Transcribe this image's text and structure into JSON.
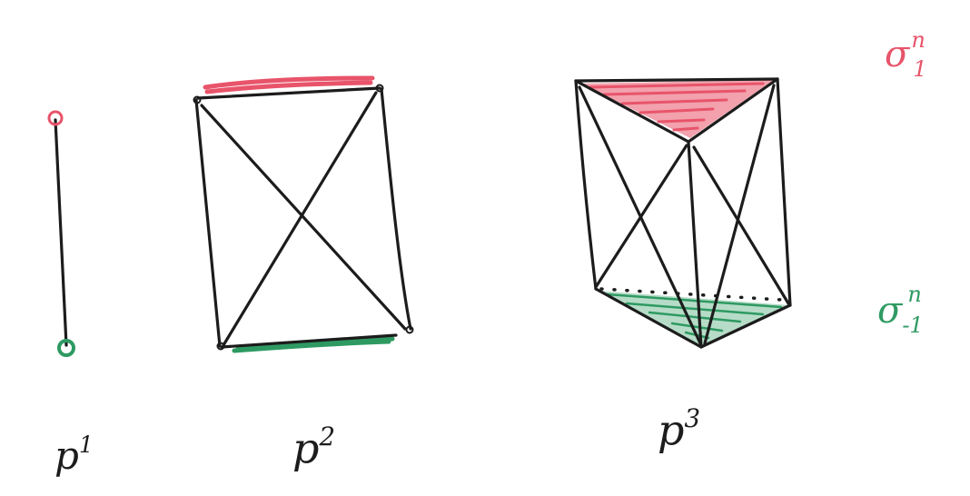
{
  "colors": {
    "ink": "#1c1c1c",
    "top_face": "#e8546a",
    "bottom_face": "#2e9a62",
    "background": "#ffffff"
  },
  "figures": [
    {
      "label_base": "p",
      "label_exp": "1",
      "shape": "segment"
    },
    {
      "label_base": "p",
      "label_exp": "2",
      "shape": "square-with-diagonals"
    },
    {
      "label_base": "p",
      "label_exp": "3",
      "shape": "triangular-prism-with-diagonals"
    }
  ],
  "legend": {
    "top": {
      "symbol": "σ",
      "sup": "n",
      "sub": "1",
      "color": "#e8546a"
    },
    "bottom": {
      "symbol": "σ",
      "sup": "n",
      "sub": "-1",
      "color": "#2e9a62"
    }
  }
}
